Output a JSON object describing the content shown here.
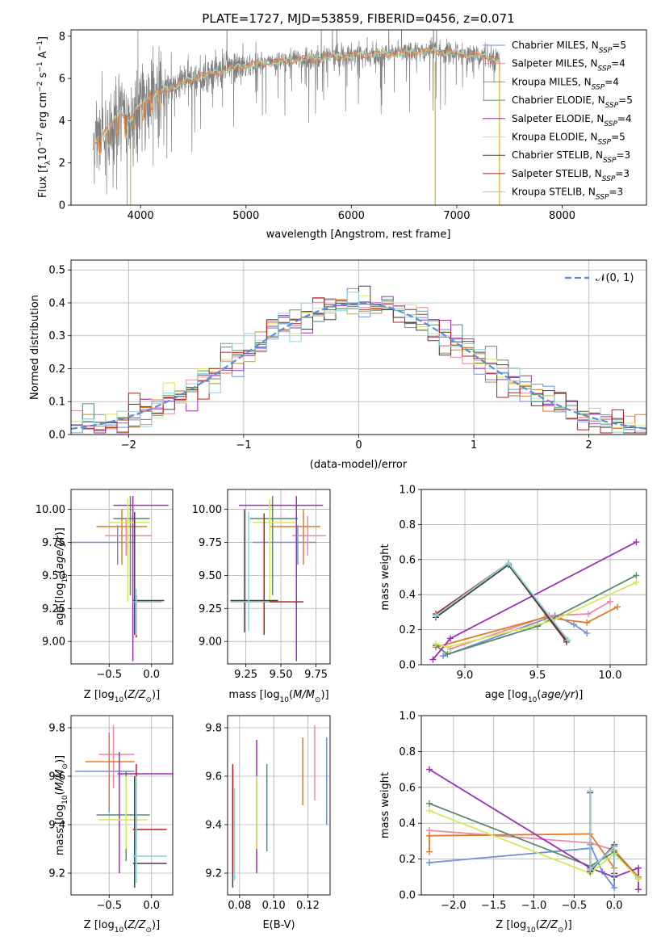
{
  "title": "PLATE=1727, MJD=53859, FIBERID=0456, z=0.071",
  "colors": {
    "Chabrier MILES": "#6f8fd6",
    "Salpeter MILES": "#e989a8",
    "Kroupa MILES": "#e07b28",
    "Chabrier ELODIE": "#5a8a6a",
    "Salpeter ELODIE": "#9a2fb6",
    "Kroupa ELODIE": "#d6e85a",
    "Chabrier STELIB": "#444444",
    "Salpeter STELIB": "#b21e1e",
    "Kroupa STELIB": "#84d6de",
    "spectrum": "#808080",
    "gauss": "#5b8ed6"
  },
  "chart_data": [
    {
      "id": "spectrum",
      "type": "line",
      "xlabel": "wavelength [Angstrom, rest frame]",
      "ylabel": "Flux [f_λ10^-17 erg cm^-2 s^-1 A^-1]",
      "xlim": [
        3340,
        8800
      ],
      "ylim": [
        0,
        8.3
      ],
      "xticks": [
        4000,
        5000,
        6000,
        7000,
        8000
      ],
      "yticks": [
        0,
        2,
        4,
        6,
        8
      ],
      "continuum_knots": {
        "x": [
          3550,
          3700,
          3800,
          3900,
          4000,
          4100,
          4200,
          4300,
          4500,
          4800,
          5000,
          5500,
          6000,
          6500,
          6800,
          7000,
          7200,
          7400
        ],
        "y": [
          3.0,
          3.6,
          4.4,
          4.0,
          4.8,
          5.2,
          5.4,
          5.6,
          6.0,
          6.4,
          6.6,
          6.9,
          7.1,
          7.2,
          7.3,
          7.2,
          7.1,
          6.9
        ]
      },
      "data_range": [
        3550,
        7410
      ],
      "legend": [
        {
          "name": "Chabrier MILES",
          "nssp": "5"
        },
        {
          "name": "Salpeter MILES",
          "nssp": "4"
        },
        {
          "name": "Kroupa MILES",
          "nssp": "4"
        },
        {
          "name": "Chabrier ELODIE",
          "nssp": "5"
        },
        {
          "name": "Salpeter ELODIE",
          "nssp": "4"
        },
        {
          "name": "Kroupa ELODIE",
          "nssp": "5"
        },
        {
          "name": "Chabrier STELIB",
          "nssp": "3"
        },
        {
          "name": "Salpeter STELIB",
          "nssp": "3"
        },
        {
          "name": "Kroupa STELIB",
          "nssp": "3"
        }
      ],
      "legend_placement": "right"
    },
    {
      "id": "residuals",
      "type": "histogram",
      "xlabel": "(data-model)/error",
      "ylabel": "Normed distribution",
      "xlim": [
        -2.5,
        2.5
      ],
      "ylim": [
        0,
        0.53
      ],
      "xticks": [
        -2,
        -1,
        0,
        1,
        2
      ],
      "yticks": [
        0.0,
        0.1,
        0.2,
        0.3,
        0.4,
        0.5
      ],
      "bin_width": 0.1,
      "legend": "𝒩(0, 1)",
      "legend_placement": "top-right",
      "grid": true
    },
    {
      "id": "age_Z",
      "type": "errorbar",
      "xlabel": "Z [log10(Z/Z⊙)]",
      "ylabel": "age  [log10(age/yr)]",
      "xlim": [
        -0.95,
        0.25
      ],
      "ylim": [
        8.83,
        10.15
      ],
      "xticks": [
        -0.5,
        0.0
      ],
      "yticks": [
        9.0,
        9.25,
        9.5,
        9.75,
        10.0
      ],
      "points": [
        {
          "s": "Chabrier MILES",
          "x": -0.4,
          "y": 9.75,
          "xl": -0.95,
          "xh": -0.2,
          "yl": 9.58,
          "yh": 9.88
        },
        {
          "s": "Salpeter MILES",
          "x": -0.3,
          "y": 9.8,
          "xl": -0.55,
          "xh": 0.0,
          "yl": 9.65,
          "yh": 9.92
        },
        {
          "s": "Kroupa MILES",
          "x": -0.35,
          "y": 9.87,
          "xl": -0.65,
          "xh": -0.05,
          "yl": 9.58,
          "yh": 10.0
        },
        {
          "s": "Chabrier ELODIE",
          "x": -0.25,
          "y": 9.93,
          "xl": -0.45,
          "xh": -0.02,
          "yl": 9.35,
          "yh": 10.1
        },
        {
          "s": "Salpeter ELODIE",
          "x": -0.22,
          "y": 10.03,
          "xl": -0.45,
          "xh": 0.2,
          "yl": 8.85,
          "yh": 10.1
        },
        {
          "s": "Kroupa ELODIE",
          "x": -0.28,
          "y": 9.9,
          "xl": -0.5,
          "xh": -0.02,
          "yl": 9.3,
          "yh": 10.08
        },
        {
          "s": "Chabrier STELIB",
          "x": -0.2,
          "y": 9.31,
          "xl": -0.22,
          "xh": 0.15,
          "yl": 9.05,
          "yh": 9.98
        },
        {
          "s": "Salpeter STELIB",
          "x": -0.18,
          "y": 9.3,
          "xl": -0.2,
          "xh": 0.12,
          "yl": 9.03,
          "yh": 9.35
        },
        {
          "s": "Kroupa STELIB",
          "x": -0.18,
          "y": 9.3,
          "xl": -0.22,
          "xh": 0.12,
          "yl": 9.05,
          "yh": 9.4
        }
      ]
    },
    {
      "id": "age_mass",
      "type": "errorbar",
      "xlabel": "mass [log10(M/M⊙)]",
      "ylabel": "",
      "xlim": [
        9.12,
        9.85
      ],
      "ylim": [
        8.83,
        10.15
      ],
      "xticks": [
        9.25,
        9.5,
        9.75
      ],
      "yticks": [
        9.0,
        9.25,
        9.5,
        9.75,
        10.0
      ],
      "points": [
        {
          "s": "Chabrier MILES",
          "x": 9.62,
          "y": 9.75,
          "xl": 9.3,
          "xh": 9.75,
          "yl": 9.58,
          "yh": 9.88
        },
        {
          "s": "Salpeter MILES",
          "x": 9.69,
          "y": 9.8,
          "xl": 9.58,
          "xh": 9.82,
          "yl": 9.65,
          "yh": 9.95
        },
        {
          "s": "Kroupa MILES",
          "x": 9.66,
          "y": 9.87,
          "xl": 9.42,
          "xh": 9.78,
          "yl": 9.58,
          "yh": 10.0
        },
        {
          "s": "Chabrier ELODIE",
          "x": 9.44,
          "y": 9.93,
          "xl": 9.28,
          "xh": 9.62,
          "yl": 9.35,
          "yh": 10.1
        },
        {
          "s": "Salpeter ELODIE",
          "x": 9.61,
          "y": 10.03,
          "xl": 9.2,
          "xh": 9.8,
          "yl": 8.85,
          "yh": 10.1
        },
        {
          "s": "Kroupa ELODIE",
          "x": 9.42,
          "y": 9.9,
          "xl": 9.3,
          "xh": 9.6,
          "yl": 9.3,
          "yh": 10.08
        },
        {
          "s": "Chabrier STELIB",
          "x": 9.24,
          "y": 9.31,
          "xl": 9.14,
          "xh": 9.48,
          "yl": 9.07,
          "yh": 10.0
        },
        {
          "s": "Salpeter STELIB",
          "x": 9.38,
          "y": 9.3,
          "xl": 9.14,
          "xh": 9.66,
          "yl": 9.05,
          "yh": 9.97
        },
        {
          "s": "Kroupa STELIB",
          "x": 9.27,
          "y": 9.3,
          "xl": 9.14,
          "xh": 9.42,
          "yl": 9.08,
          "yh": 9.98
        }
      ]
    },
    {
      "id": "weight_age",
      "type": "line",
      "xlabel": "age  [log10(age/yr)]",
      "ylabel": "mass weight",
      "xlim": [
        8.7,
        10.25
      ],
      "ylim": [
        0,
        1.0
      ],
      "xticks": [
        9.0,
        9.5,
        10.0
      ],
      "yticks": [
        0.0,
        0.2,
        0.4,
        0.6,
        0.8,
        1.0
      ],
      "grid": true,
      "series": [
        {
          "name": "Chabrier MILES",
          "x": [
            8.85,
            9.62,
            9.75,
            9.84
          ],
          "y": [
            0.05,
            0.28,
            0.23,
            0.18
          ]
        },
        {
          "name": "Salpeter MILES",
          "x": [
            8.9,
            9.58,
            9.85,
            10.0
          ],
          "y": [
            0.09,
            0.28,
            0.29,
            0.36
          ]
        },
        {
          "name": "Kroupa MILES",
          "x": [
            8.8,
            9.55,
            9.84,
            10.05
          ],
          "y": [
            0.1,
            0.27,
            0.24,
            0.33
          ]
        },
        {
          "name": "Chabrier ELODIE",
          "x": [
            8.8,
            8.88,
            9.5,
            10.18
          ],
          "y": [
            0.11,
            0.06,
            0.22,
            0.51
          ]
        },
        {
          "name": "Salpeter ELODIE",
          "x": [
            8.78,
            8.9,
            10.18
          ],
          "y": [
            0.03,
            0.15,
            0.7
          ]
        },
        {
          "name": "Kroupa ELODIE",
          "x": [
            8.8,
            8.88,
            9.6,
            10.18
          ],
          "y": [
            0.12,
            0.1,
            0.25,
            0.47
          ]
        },
        {
          "name": "Chabrier STELIB",
          "x": [
            8.8,
            9.3,
            9.7
          ],
          "y": [
            0.27,
            0.57,
            0.13
          ]
        },
        {
          "name": "Salpeter STELIB",
          "x": [
            8.8,
            9.3,
            9.7
          ],
          "y": [
            0.29,
            0.58,
            0.14
          ]
        },
        {
          "name": "Kroupa STELIB",
          "x": [
            8.8,
            9.3,
            9.71
          ],
          "y": [
            0.28,
            0.58,
            0.14
          ]
        }
      ]
    },
    {
      "id": "mass_Z",
      "type": "errorbar",
      "xlabel": "Z [log10(Z/Z⊙)]",
      "ylabel": "mass [log10(M/M⊙)]",
      "xlim": [
        -0.95,
        0.25
      ],
      "ylim": [
        9.11,
        9.85
      ],
      "xticks": [
        -0.5,
        0.0
      ],
      "yticks": [
        9.2,
        9.4,
        9.6,
        9.8
      ],
      "points": [
        {
          "s": "Chabrier MILES",
          "x": -0.5,
          "y": 9.62,
          "xl": -0.9,
          "xh": -0.2,
          "yl": 9.45,
          "yh": 9.7
        },
        {
          "s": "Salpeter MILES",
          "x": -0.45,
          "y": 9.69,
          "xl": -0.62,
          "xh": -0.2,
          "yl": 9.55,
          "yh": 9.81
        },
        {
          "s": "Kroupa MILES",
          "x": -0.5,
          "y": 9.66,
          "xl": -0.78,
          "xh": -0.2,
          "yl": 9.47,
          "yh": 9.78
        },
        {
          "s": "Chabrier ELODIE",
          "x": -0.3,
          "y": 9.44,
          "xl": -0.65,
          "xh": -0.02,
          "yl": 9.25,
          "yh": 9.62
        },
        {
          "s": "Salpeter ELODIE",
          "x": -0.38,
          "y": 9.61,
          "xl": -0.4,
          "xh": 0.25,
          "yl": 9.2,
          "yh": 9.7
        },
        {
          "s": "Kroupa ELODIE",
          "x": -0.3,
          "y": 9.42,
          "xl": -0.62,
          "xh": -0.05,
          "yl": 9.3,
          "yh": 9.6
        },
        {
          "s": "Chabrier STELIB",
          "x": -0.2,
          "y": 9.24,
          "xl": -0.22,
          "xh": 0.18,
          "yl": 9.14,
          "yh": 9.6
        },
        {
          "s": "Salpeter STELIB",
          "x": -0.18,
          "y": 9.38,
          "xl": -0.22,
          "xh": 0.18,
          "yl": 9.3,
          "yh": 9.65
        },
        {
          "s": "Kroupa STELIB",
          "x": -0.18,
          "y": 9.27,
          "xl": -0.22,
          "xh": 0.18,
          "yl": 9.16,
          "yh": 9.6
        }
      ]
    },
    {
      "id": "mass_ebv",
      "type": "errorbar",
      "xlabel": "E(B-V)",
      "ylabel": "",
      "xlim": [
        0.073,
        0.133
      ],
      "ylim": [
        9.11,
        9.85
      ],
      "xticks": [
        0.08,
        0.1,
        0.12
      ],
      "yticks": [
        9.2,
        9.4,
        9.6,
        9.8
      ],
      "points": [
        {
          "s": "Chabrier MILES",
          "x": 0.131,
          "y": 9.62,
          "yl": 9.4,
          "yh": 9.76
        },
        {
          "s": "Salpeter MILES",
          "x": 0.124,
          "y": 9.69,
          "yl": 9.5,
          "yh": 9.81
        },
        {
          "s": "Kroupa MILES",
          "x": 0.117,
          "y": 9.66,
          "yl": 9.48,
          "yh": 9.76
        },
        {
          "s": "Chabrier ELODIE",
          "x": 0.096,
          "y": 9.44,
          "yl": 9.29,
          "yh": 9.65
        },
        {
          "s": "Salpeter ELODIE",
          "x": 0.09,
          "y": 9.61,
          "yl": 9.2,
          "yh": 9.75
        },
        {
          "s": "Kroupa ELODIE",
          "x": 0.09,
          "y": 9.42,
          "yl": 9.3,
          "yh": 9.6
        },
        {
          "s": "Chabrier STELIB",
          "x": 0.076,
          "y": 9.24,
          "yl": 9.14,
          "yh": 9.55
        },
        {
          "s": "Salpeter STELIB",
          "x": 0.076,
          "y": 9.38,
          "yl": 9.2,
          "yh": 9.65
        },
        {
          "s": "Kroupa STELIB",
          "x": 0.077,
          "y": 9.27,
          "yl": 9.17,
          "yh": 9.55
        }
      ]
    },
    {
      "id": "weight_Z",
      "type": "line",
      "xlabel": "Z [log10(Z/Z⊙)]",
      "ylabel": "mass weight",
      "xlim": [
        -2.4,
        0.4
      ],
      "ylim": [
        0,
        1.0
      ],
      "xticks": [
        -2.0,
        -1.5,
        -1.0,
        -0.5,
        0.0
      ],
      "yticks": [
        0.0,
        0.2,
        0.4,
        0.6,
        0.8,
        1.0
      ],
      "grid": true,
      "series": [
        {
          "name": "Chabrier MILES",
          "x": [
            -2.3,
            -0.3,
            -0.3,
            -0.15,
            0.0,
            0.0
          ],
          "y": [
            0.18,
            0.26,
            0.28,
            0.13,
            0.04,
            0.27
          ]
        },
        {
          "name": "Salpeter MILES",
          "x": [
            -2.3,
            -0.3,
            0.0,
            0.3
          ],
          "y": [
            0.36,
            0.29,
            0.25,
            0.1
          ]
        },
        {
          "name": "Kroupa MILES",
          "x": [
            -2.3,
            -2.3,
            -0.3,
            0.0,
            0.0,
            0.3
          ],
          "y": [
            0.24,
            0.33,
            0.34,
            0.15,
            0.25,
            0.1
          ]
        },
        {
          "name": "Chabrier ELODIE",
          "x": [
            -2.3,
            -0.3,
            0.0,
            0.3
          ],
          "y": [
            0.51,
            0.16,
            0.24,
            0.09
          ]
        },
        {
          "name": "Salpeter ELODIE",
          "x": [
            -2.3,
            -0.3,
            0.0,
            0.3,
            0.3
          ],
          "y": [
            0.7,
            0.15,
            0.1,
            0.15,
            0.03
          ]
        },
        {
          "name": "Kroupa ELODIE",
          "x": [
            -2.3,
            -0.3,
            0.0,
            0.3
          ],
          "y": [
            0.47,
            0.12,
            0.23,
            0.09
          ]
        },
        {
          "name": "Chabrier STELIB",
          "x": [
            -0.3,
            -0.3,
            0.0,
            0.0
          ],
          "y": [
            0.57,
            0.13,
            0.28,
            0.1
          ]
        },
        {
          "name": "Salpeter STELIB",
          "x": [
            -0.3,
            -0.3,
            0.0,
            0.0
          ],
          "y": [
            0.58,
            0.14,
            0.27,
            0.12
          ]
        },
        {
          "name": "Kroupa STELIB",
          "x": [
            -0.3,
            -0.3,
            0.0,
            0.0
          ],
          "y": [
            0.58,
            0.14,
            0.27,
            0.11
          ]
        }
      ]
    }
  ]
}
